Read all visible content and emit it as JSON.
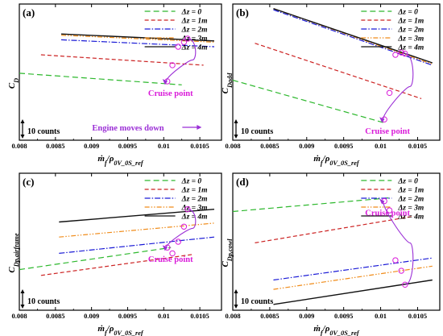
{
  "figure": {
    "x_axis_label": "ṁ_f/ρ_0V_0S_ref",
    "scale_bar_label": "10 counts",
    "cruise_label": "Cruise point",
    "engine_note": "Engine moves down",
    "colors": {
      "dz0": "#2db82d",
      "dz1": "#cc2222",
      "dz2": "#1a1ad6",
      "dz3": "#f08c1a",
      "dz4": "#111111",
      "marker": "#d91ad9",
      "note": "#9b2fd6"
    }
  },
  "chart_data": [
    {
      "type": "line",
      "panel": "(a)",
      "ylabel": "C_D",
      "xlabel": "ṁ_f/ρ_0V_0S_ref",
      "xlim": [
        0.008,
        0.0108
      ],
      "x_ticks": [
        "0.008",
        "0.0085",
        "0.009",
        "0.0095",
        "0.01",
        "0.0105"
      ],
      "legend": "top-right",
      "series": [
        {
          "name": "Δz = 0",
          "x": [
            0.008,
            0.01025
          ],
          "y": [
            0.5,
            0.4
          ]
        },
        {
          "name": "Δz = 1m",
          "x": [
            0.0083,
            0.01055
          ],
          "y": [
            0.66,
            0.57
          ]
        },
        {
          "name": "Δz = 2m",
          "x": [
            0.00858,
            0.0107
          ],
          "y": [
            0.79,
            0.73
          ]
        },
        {
          "name": "Δz = 3m",
          "x": [
            0.00858,
            0.0107
          ],
          "y": [
            0.83,
            0.77
          ]
        },
        {
          "name": "Δz = 4m",
          "x": [
            0.00858,
            0.0107
          ],
          "y": [
            0.84,
            0.78
          ]
        }
      ],
      "cruise_points": {
        "x": [
          0.01005,
          0.01012,
          0.0102,
          0.01028,
          0.01033
        ],
        "y": [
          0.43,
          0.57,
          0.73,
          0.77,
          0.8
        ]
      }
    },
    {
      "type": "line",
      "panel": "(b)",
      "ylabel": "C_Dadd",
      "xlabel": "ṁ_f/ρ_0V_0S_ref",
      "xlim": [
        0.008,
        0.0108
      ],
      "x_ticks": [
        "0.008",
        "0.0085",
        "0.009",
        "0.0095",
        "0.01",
        "0.0105"
      ],
      "legend": "top-right",
      "series": [
        {
          "name": "Δz = 0",
          "x": [
            0.008,
            0.01005
          ],
          "y": [
            0.44,
            0.07
          ]
        },
        {
          "name": "Δz = 1m",
          "x": [
            0.0083,
            0.01055
          ],
          "y": [
            0.76,
            0.28
          ]
        },
        {
          "name": "Δz = 2m",
          "x": [
            0.00855,
            0.0107
          ],
          "y": [
            1.05,
            0.57
          ]
        },
        {
          "name": "Δz = 3m",
          "x": [
            0.00855,
            0.0107
          ],
          "y": [
            1.06,
            0.58
          ]
        },
        {
          "name": "Δz = 4m",
          "x": [
            0.00855,
            0.0107
          ],
          "y": [
            1.06,
            0.59
          ]
        }
      ],
      "cruise_points": {
        "x": [
          0.01005,
          0.01012,
          0.0102,
          0.01028,
          0.01033
        ],
        "y": [
          0.1,
          0.33,
          0.66,
          0.68,
          0.67
        ]
      }
    },
    {
      "type": "line",
      "panel": "(c)",
      "ylabel": "C_Dp,airframe",
      "xlabel": "ṁ_f/ρ_0V_0S_ref",
      "xlim": [
        0.008,
        0.0108
      ],
      "x_ticks": [
        "0.008",
        "0.0085",
        "0.009",
        "0.0095",
        "0.01",
        "0.0105"
      ],
      "legend": "top-right",
      "series": [
        {
          "name": "Δz = 0",
          "x": [
            0.008,
            0.0101
          ],
          "y": [
            0.27,
            0.46
          ]
        },
        {
          "name": "Δz = 1m",
          "x": [
            0.0083,
            0.0104
          ],
          "y": [
            0.22,
            0.4
          ]
        },
        {
          "name": "Δz = 2m",
          "x": [
            0.00855,
            0.0107
          ],
          "y": [
            0.41,
            0.55
          ]
        },
        {
          "name": "Δz = 3m",
          "x": [
            0.00855,
            0.0107
          ],
          "y": [
            0.55,
            0.67
          ]
        },
        {
          "name": "Δz = 4m",
          "x": [
            0.00855,
            0.0107
          ],
          "y": [
            0.68,
            0.79
          ]
        }
      ],
      "cruise_points": {
        "x": [
          0.01005,
          0.01012,
          0.0102,
          0.01028,
          0.01033
        ],
        "y": [
          0.46,
          0.41,
          0.51,
          0.64,
          0.79
        ]
      }
    },
    {
      "type": "line",
      "panel": "(d)",
      "ylabel": "C_Dp,cowl",
      "xlabel": "ṁ_f/ρ_0V_0S_ref",
      "xlim": [
        0.008,
        0.0108
      ],
      "x_ticks": [
        "0.008",
        "0.0085",
        "0.009",
        "0.0095",
        "0.01",
        "0.0105"
      ],
      "legend": "top-right",
      "series": [
        {
          "name": "Δz = 0",
          "x": [
            0.008,
            0.01015
          ],
          "y": [
            0.77,
            0.89
          ]
        },
        {
          "name": "Δz = 1m",
          "x": [
            0.0083,
            0.01045
          ],
          "y": [
            0.5,
            0.73
          ]
        },
        {
          "name": "Δz = 2m",
          "x": [
            0.00855,
            0.0107
          ],
          "y": [
            0.18,
            0.37
          ]
        },
        {
          "name": "Δz = 3m",
          "x": [
            0.00855,
            0.0107
          ],
          "y": [
            0.1,
            0.3
          ]
        },
        {
          "name": "Δz = 4m",
          "x": [
            0.00855,
            0.0107
          ],
          "y": [
            -0.03,
            0.18
          ]
        }
      ],
      "cruise_points": {
        "x": [
          0.01005,
          0.01012,
          0.0102,
          0.01028,
          0.01033
        ],
        "y": [
          0.86,
          0.78,
          0.35,
          0.26,
          0.14
        ]
      }
    }
  ]
}
